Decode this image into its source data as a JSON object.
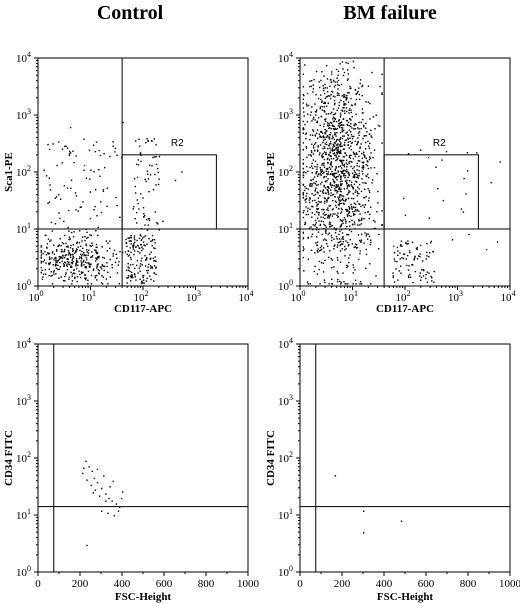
{
  "columns": {
    "left": "Control",
    "right": "BM failure"
  },
  "chart_data": [
    {
      "id": "p1",
      "type": "scatter",
      "column": "Control",
      "scale": "log",
      "xlabel": "CD117-APC",
      "ylabel": "Sca1-PE",
      "xlim": [
        1,
        10000
      ],
      "ylim": [
        1,
        10000
      ],
      "quadrant_lines": {
        "x": 40,
        "y": 10
      },
      "gate": {
        "label": "R2",
        "x": [
          40,
          2500
        ],
        "y": [
          10,
          200
        ]
      },
      "clusters": [
        {
          "n": 360,
          "x_log": [
            0.05,
            1.75
          ],
          "y_log": [
            0.05,
            0.9
          ],
          "center": [
            0.7,
            0.45
          ]
        },
        {
          "n": 150,
          "x_log": [
            1.65,
            2.25
          ],
          "y_log": [
            0.05,
            0.9
          ]
        },
        {
          "n": 90,
          "x_log": [
            0.1,
            1.55
          ],
          "y_log": [
            0.9,
            2.6
          ]
        },
        {
          "n": 70,
          "x_log": [
            1.8,
            2.3
          ],
          "y_log": [
            0.9,
            2.6
          ]
        },
        {
          "n": 15,
          "x_log": [
            0.3,
            2.8
          ],
          "y_log": [
            0.2,
            3.0
          ]
        }
      ]
    },
    {
      "id": "p2",
      "type": "scatter",
      "column": "BM failure",
      "scale": "log",
      "xlabel": "CD117-APC",
      "ylabel": "Sca1-PE",
      "xlim": [
        1,
        10000
      ],
      "ylim": [
        1,
        10000
      ],
      "quadrant_lines": {
        "x": 40,
        "y": 10
      },
      "gate": {
        "label": "R2",
        "x": [
          40,
          2500
        ],
        "y": [
          10,
          200
        ]
      },
      "clusters": [
        {
          "n": 1400,
          "x_log": [
            0.05,
            1.55
          ],
          "y_log": [
            0.05,
            4.0
          ],
          "center": [
            0.7,
            2.1
          ]
        },
        {
          "n": 90,
          "x_log": [
            1.75,
            2.55
          ],
          "y_log": [
            0.05,
            0.8
          ]
        },
        {
          "n": 25,
          "x_log": [
            1.8,
            3.8
          ],
          "y_log": [
            0.5,
            2.6
          ]
        }
      ]
    },
    {
      "id": "p3",
      "type": "scatter",
      "column": "Control",
      "scale": "linear-log",
      "xlabel": "FSC-Height",
      "ylabel": "CD34 FITC",
      "xlim": [
        0,
        1000
      ],
      "ylim": [
        1,
        10000
      ],
      "quadrant_lines": {
        "x": 75,
        "y": 14
      },
      "points": [
        [
          210,
          55
        ],
        [
          225,
          90
        ],
        [
          240,
          72
        ],
        [
          255,
          60
        ],
        [
          265,
          45
        ],
        [
          280,
          38
        ],
        [
          300,
          30
        ],
        [
          320,
          24
        ],
        [
          335,
          20
        ],
        [
          350,
          18
        ],
        [
          370,
          16
        ],
        [
          385,
          14
        ],
        [
          300,
          12
        ],
        [
          330,
          11
        ],
        [
          360,
          10
        ],
        [
          380,
          12
        ],
        [
          400,
          26
        ],
        [
          230,
          42
        ],
        [
          250,
          34
        ],
        [
          270,
          28
        ],
        [
          290,
          22
        ],
        [
          310,
          50
        ],
        [
          340,
          32
        ],
        [
          280,
          65
        ],
        [
          260,
          25
        ],
        [
          230,
          3
        ],
        [
          355,
          40
        ],
        [
          395,
          20
        ],
        [
          320,
          18
        ],
        [
          215,
          68
        ]
      ]
    },
    {
      "id": "p4",
      "type": "scatter",
      "column": "BM failure",
      "scale": "linear-log",
      "xlabel": "FSC-Height",
      "ylabel": "CD34 FITC",
      "xlim": [
        0,
        1000
      ],
      "ylim": [
        1,
        10000
      ],
      "quadrant_lines": {
        "x": 75,
        "y": 14
      },
      "points": [
        [
          165,
          50
        ],
        [
          300,
          12
        ],
        [
          480,
          8
        ],
        [
          300,
          5
        ]
      ]
    }
  ]
}
